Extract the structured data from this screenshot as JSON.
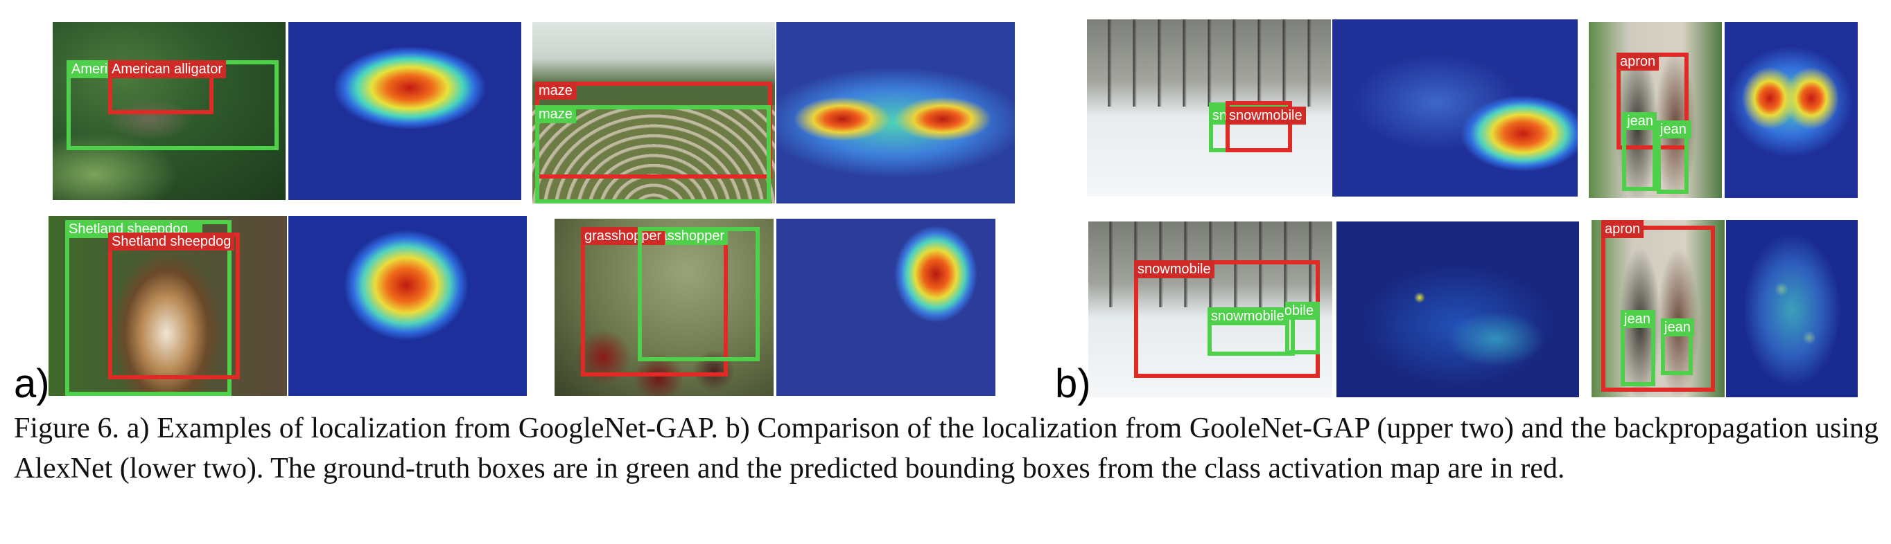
{
  "panel_labels": {
    "a": "a)",
    "b": "b)"
  },
  "images": {
    "alligator": {
      "gt_label": "American alligator",
      "pred_label": "American alligator"
    },
    "maze": {
      "pred_label": "maze",
      "gt_label": "maze"
    },
    "sheepdog": {
      "gt_label": "Shetland sheepdog",
      "pred_label": "Shetland sheepdog"
    },
    "grasshopper": {
      "pred_label": "grasshopper",
      "gt_label": "grasshopper"
    },
    "snowmobile_gap": {
      "gt_label": "snowmobile",
      "pred_label": "snowmobile"
    },
    "apron_gap": {
      "pred_label": "apron",
      "gt_label_1": "jean",
      "gt_label_2": "jean"
    },
    "snowmobile_bp": {
      "pred_label": "snowmobile",
      "gt_label_1": "snowmobile",
      "gt_label_2": "snowmobile"
    },
    "apron_bp": {
      "pred_label": "apron",
      "gt_label_1": "jean",
      "gt_label_2": "jean"
    }
  },
  "caption": "Figure 6. a) Examples of localization from GoogleNet-GAP. b) Comparison of the localization from GooleNet-GAP (upper two) and the backpropagation using AlexNet (lower two). The ground-truth boxes are in green and the predicted bounding boxes from the class activation map are in red."
}
